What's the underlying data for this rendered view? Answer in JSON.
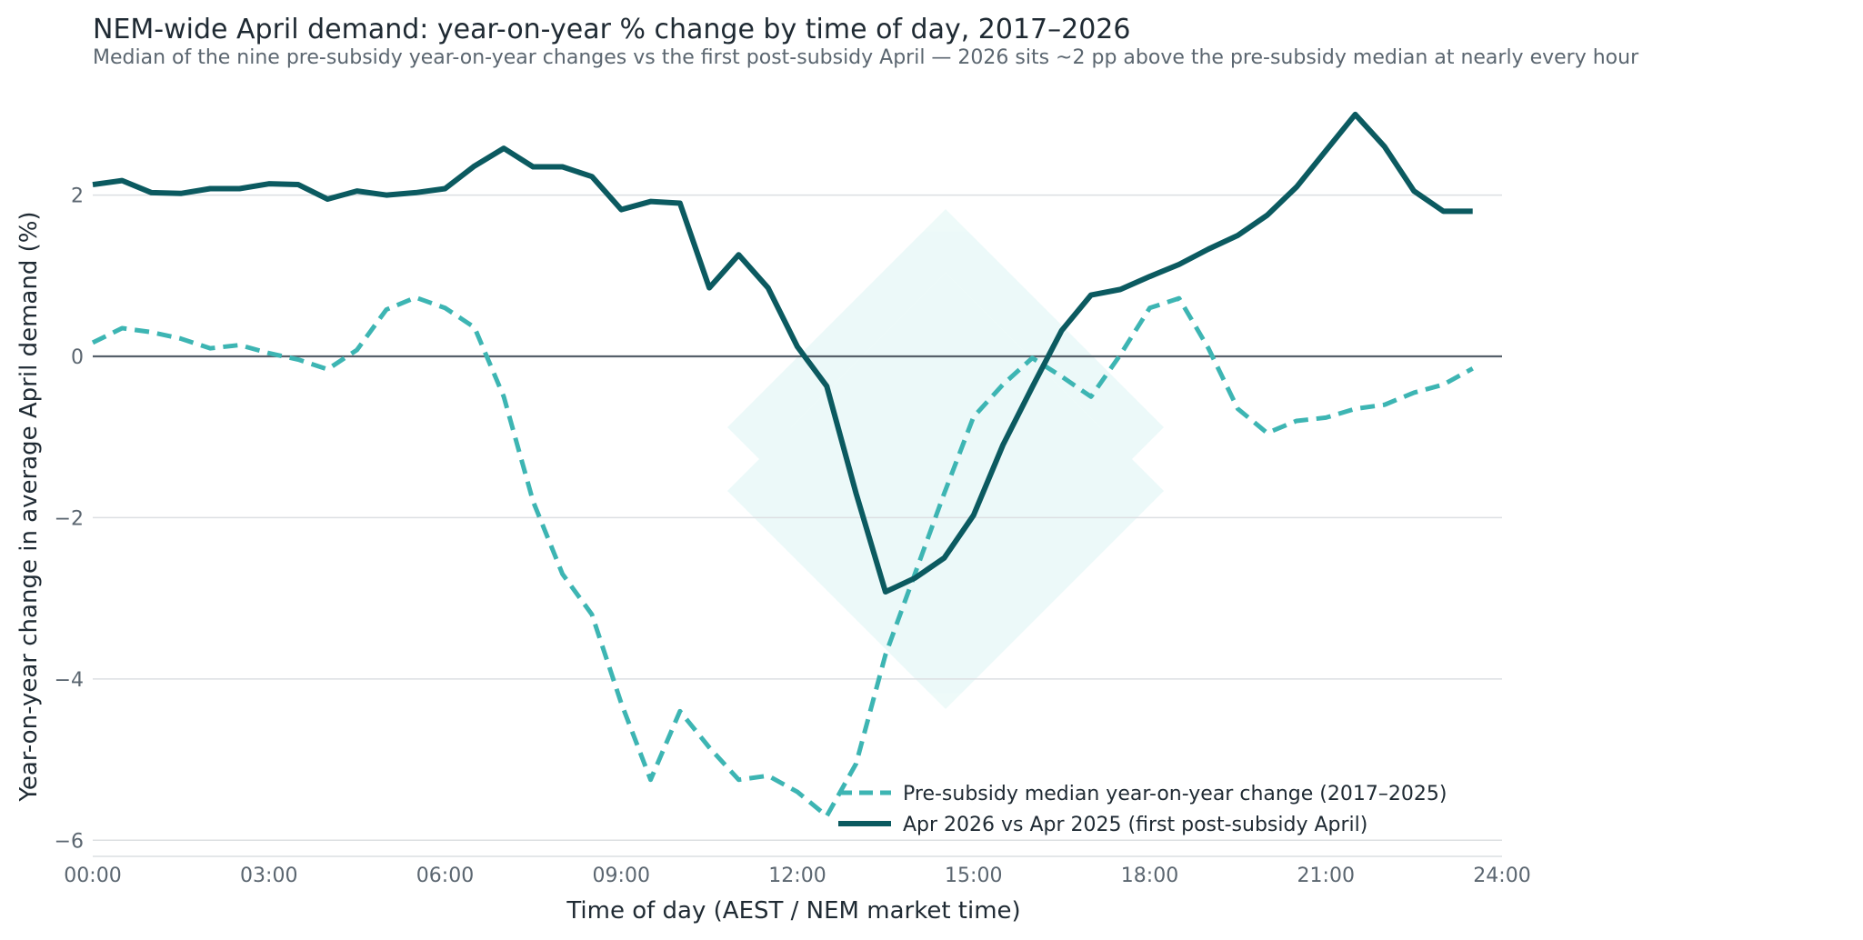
{
  "chart_data": {
    "type": "line",
    "title": "NEM-wide April demand: year-on-year % change by time of day, 2017–2026",
    "subtitle": "Median of the nine pre-subsidy year-on-year changes vs the first post-subsidy April — 2026 sits ~2 pp above the pre-subsidy median at nearly every hour",
    "xlabel": "Time of day (AEST / NEM market time)",
    "ylabel": "Year-on-year change in average April demand (%)",
    "xlim": [
      0,
      24
    ],
    "ylim": [
      -6.2,
      3.1
    ],
    "x_ticks": [
      0,
      3,
      6,
      9,
      12,
      15,
      18,
      21,
      24
    ],
    "x_tick_labels": [
      "00:00",
      "03:00",
      "06:00",
      "09:00",
      "12:00",
      "15:00",
      "18:00",
      "21:00",
      "24:00"
    ],
    "y_ticks": [
      -6,
      -4,
      -2,
      0,
      2
    ],
    "y_tick_labels": [
      "−6",
      "−4",
      "−2",
      "0",
      "2"
    ],
    "grid": true,
    "zero_line": true,
    "legend_position": "bottom-right",
    "x": [
      0,
      0.5,
      1,
      1.5,
      2,
      2.5,
      3,
      3.5,
      4,
      4.5,
      5,
      5.5,
      6,
      6.5,
      7,
      7.5,
      8,
      8.5,
      9,
      9.5,
      10,
      10.5,
      11,
      11.5,
      12,
      12.5,
      13,
      13.5,
      14,
      14.5,
      15,
      15.5,
      16,
      16.5,
      17,
      17.5,
      18,
      18.5,
      19,
      19.5,
      20,
      20.5,
      21,
      21.5,
      22,
      22.5,
      23,
      23.5
    ],
    "series": [
      {
        "name": "Pre-subsidy median year-on-year change (2017–2025)",
        "color": "#3db5b3",
        "style": "dashed",
        "values": [
          0.17,
          0.35,
          0.3,
          0.22,
          0.1,
          0.14,
          0.04,
          -0.04,
          -0.16,
          0.08,
          0.58,
          0.73,
          0.6,
          0.36,
          -0.5,
          -1.8,
          -2.7,
          -3.2,
          -4.3,
          -5.25,
          -4.4,
          -4.85,
          -5.25,
          -5.2,
          -5.4,
          -5.7,
          -5.05,
          -3.7,
          -2.7,
          -1.7,
          -0.75,
          -0.35,
          -0.02,
          -0.25,
          -0.5,
          0.02,
          0.6,
          0.72,
          0.1,
          -0.65,
          -0.95,
          -0.8,
          -0.76,
          -0.65,
          -0.6,
          -0.45,
          -0.35,
          -0.15
        ]
      },
      {
        "name": "Apr 2026 vs Apr 2025 (first post-subsidy April)",
        "color": "#0b5a60",
        "style": "solid",
        "values": [
          2.13,
          2.18,
          2.03,
          2.02,
          2.08,
          2.08,
          2.14,
          2.13,
          1.95,
          2.05,
          2.0,
          2.03,
          2.08,
          2.36,
          2.58,
          2.35,
          2.35,
          2.23,
          1.82,
          1.92,
          1.9,
          0.85,
          1.26,
          0.85,
          0.12,
          -0.37,
          -1.7,
          -2.92,
          -2.75,
          -2.5,
          -1.97,
          -1.1,
          -0.38,
          0.32,
          0.76,
          0.83,
          0.99,
          1.14,
          1.33,
          1.5,
          1.75,
          2.1,
          2.55,
          3.0,
          2.6,
          2.05,
          1.8,
          1.8
        ]
      }
    ]
  }
}
